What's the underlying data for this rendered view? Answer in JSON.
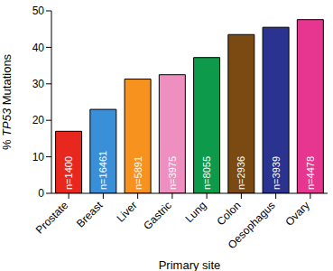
{
  "chart_data": {
    "type": "bar",
    "x_label": "Primary site",
    "y_label": "% TP53 Mutations",
    "categories": [
      "Prostate",
      "Breast",
      "Liver",
      "Gastric",
      "Lung",
      "Colon",
      "Oesophagus",
      "Ovary"
    ],
    "values": [
      17,
      23,
      31.3,
      32.5,
      37.2,
      43.5,
      45.5,
      47.6
    ],
    "annotations": [
      "n=1400",
      "n=16461",
      "n=5891",
      "n=3975",
      "n=8055",
      "n=2936",
      "n=3939",
      "n=4478"
    ],
    "colors": [
      "#e8281e",
      "#3a8fd9",
      "#f7921e",
      "#ee8fbf",
      "#0d9a4a",
      "#7b4a12",
      "#2b3390",
      "#e6368f"
    ],
    "ylim": [
      0,
      50
    ],
    "yticks": [
      0,
      10,
      20,
      30,
      40,
      50
    ],
    "grid": false
  }
}
